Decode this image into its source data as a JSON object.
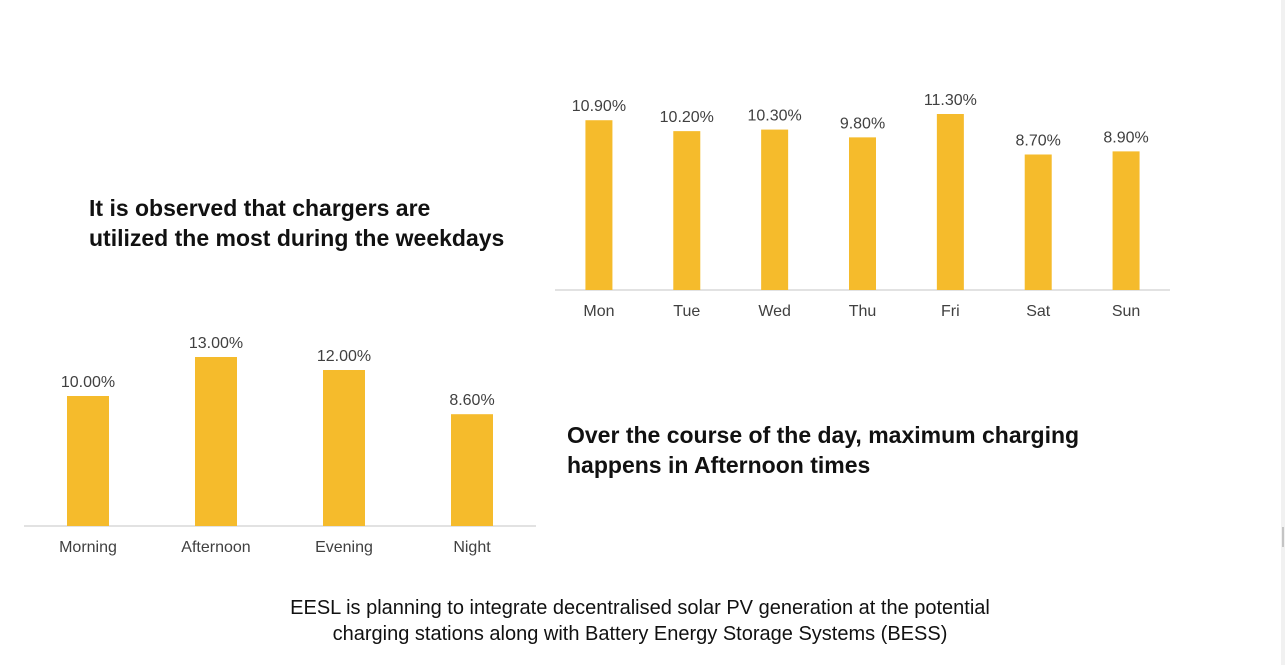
{
  "headlines": {
    "weekdays_line1": "It is observed that chargers are",
    "weekdays_line2": "utilized the most during the weekdays",
    "afternoon_line1": "Over the course of the day, maximum charging",
    "afternoon_line2": "happens in Afternoon times"
  },
  "footer": {
    "line1": "EESL is planning to integrate decentralised solar PV generation at the potential",
    "line2": "charging stations along with Battery Energy Storage Systems (BESS)"
  },
  "colors": {
    "bar": "#F5BB2C",
    "axis": "#D9D9D9",
    "label": "#404040"
  },
  "chart_data": [
    {
      "type": "bar",
      "id": "weekday",
      "title": "",
      "xlabel": "",
      "ylabel": "",
      "categories": [
        "Mon",
        "Tue",
        "Wed",
        "Thu",
        "Fri",
        "Sat",
        "Sun"
      ],
      "values": [
        10.9,
        10.2,
        10.3,
        9.8,
        11.3,
        8.7,
        8.9
      ],
      "data_labels": [
        "10.90%",
        "10.20%",
        "10.30%",
        "9.80%",
        "11.30%",
        "8.70%",
        "8.90%"
      ],
      "unit": "%",
      "ylim": [
        0,
        11.3
      ],
      "grid": false,
      "legend": "none"
    },
    {
      "type": "bar",
      "id": "timeofday",
      "title": "",
      "xlabel": "",
      "ylabel": "",
      "categories": [
        "Morning",
        "Afternoon",
        "Evening",
        "Night"
      ],
      "values": [
        10.0,
        13.0,
        12.0,
        8.6
      ],
      "data_labels": [
        "10.00%",
        "13.00%",
        "12.00%",
        "8.60%"
      ],
      "unit": "%",
      "ylim": [
        0,
        13.0
      ],
      "grid": false,
      "legend": "none"
    }
  ]
}
